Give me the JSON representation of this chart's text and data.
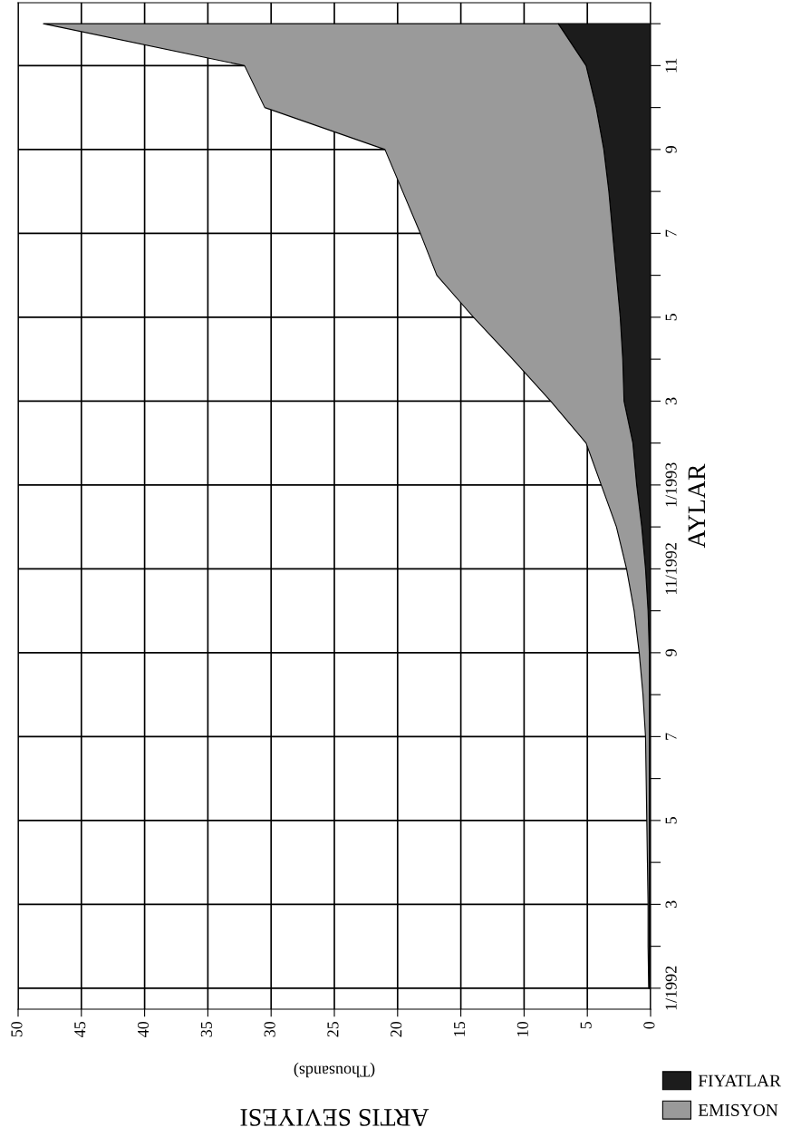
{
  "chart_data": {
    "type": "area",
    "orientation": "horizontal",
    "stacked": true,
    "xlabel": "ARTIS SEVIYESI",
    "ylabel": "AYLAR",
    "annotations": [
      "(Thousands)"
    ],
    "categories": [
      null,
      "11",
      null,
      "9",
      null,
      "7",
      null,
      "5",
      null,
      "3",
      null,
      "1/1993",
      null,
      "11/1992",
      null,
      "9",
      null,
      "7",
      null,
      "5",
      null,
      "3",
      null,
      "1/1992"
    ],
    "series": [
      {
        "name": "FIYATLAR",
        "color": "#1c1c1c",
        "values": [
          7.3,
          5.1,
          4.3,
          3.7,
          3.3,
          3.0,
          2.7,
          2.4,
          2.2,
          2.1,
          1.4,
          1.1,
          0.7,
          0.4,
          0.2,
          0.1,
          0.1,
          0.1,
          0.1,
          0.1,
          0.1,
          0.1,
          0.1,
          0.1
        ]
      },
      {
        "name": "EMISYON",
        "color": "#9a9a9a",
        "values": [
          40.7,
          27.0,
          26.2,
          17.3,
          16.3,
          15.2,
          14.2,
          11.6,
          8.7,
          5.8,
          3.7,
          2.8,
          2.0,
          1.5,
          1.1,
          0.8,
          0.5,
          0.3,
          0.25,
          0.2,
          0.15,
          0.1,
          0.1,
          0.05
        ]
      }
    ],
    "xlim": [
      50,
      0
    ],
    "xticks": [
      0,
      5,
      10,
      15,
      20,
      25,
      30,
      35,
      40,
      45,
      50
    ],
    "grid": true,
    "legend": "right"
  }
}
